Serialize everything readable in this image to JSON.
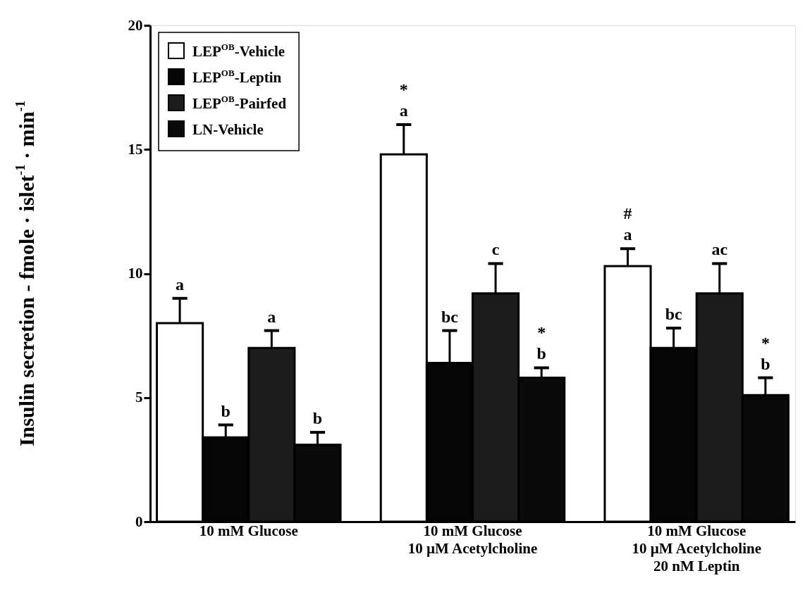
{
  "chart_data": {
    "type": "bar",
    "ylabel": "Insulin secretion - fmole · islet$^{-1}$ · min$^{-1}$",
    "categories": [
      "10 mM Glucose",
      "10 mM Glucose\n10 µM Acetylcholine",
      "10 mM Glucose\n10 µM Acetylcholine\n20 nM Leptin"
    ],
    "series": [
      {
        "name": "LEP$^{OB}$-Vehicle",
        "color": "#ffffff",
        "values": [
          8.0,
          14.8,
          10.3
        ],
        "errors": [
          [
            8.0,
            9.0
          ],
          [
            14.8,
            16.0
          ],
          [
            10.3,
            11.0
          ]
        ],
        "value_labels": [
          "a",
          "*\na",
          "#\na"
        ]
      },
      {
        "name": "LEP$^{OB}$-Leptin",
        "color": "#050505",
        "values": [
          3.4,
          6.4,
          7.0
        ],
        "errors": [
          [
            3.4,
            3.9
          ],
          [
            6.4,
            7.7
          ],
          [
            7.0,
            7.8
          ]
        ],
        "value_labels": [
          "b",
          "bc",
          "bc"
        ]
      },
      {
        "name": "LEP$^{OB}$-Pairfed",
        "color": "#1c1c1c",
        "values": [
          7.0,
          9.2,
          9.2
        ],
        "errors": [
          [
            7.0,
            7.7
          ],
          [
            9.2,
            10.4
          ],
          [
            9.2,
            10.4
          ]
        ],
        "value_labels": [
          "a",
          "c",
          "ac"
        ]
      },
      {
        "name": "LN-Vehicle",
        "color": "#0a0a0a",
        "values": [
          3.1,
          5.8,
          5.1
        ],
        "errors": [
          [
            3.1,
            3.6
          ],
          [
            5.8,
            6.2
          ],
          [
            5.1,
            5.8
          ]
        ],
        "value_labels": [
          "b",
          "*\nb",
          "*\nb"
        ]
      }
    ],
    "ylim": [
      0,
      20
    ],
    "yticks": [
      0,
      5,
      10,
      15,
      20
    ],
    "grid": false,
    "legend": "top left"
  }
}
